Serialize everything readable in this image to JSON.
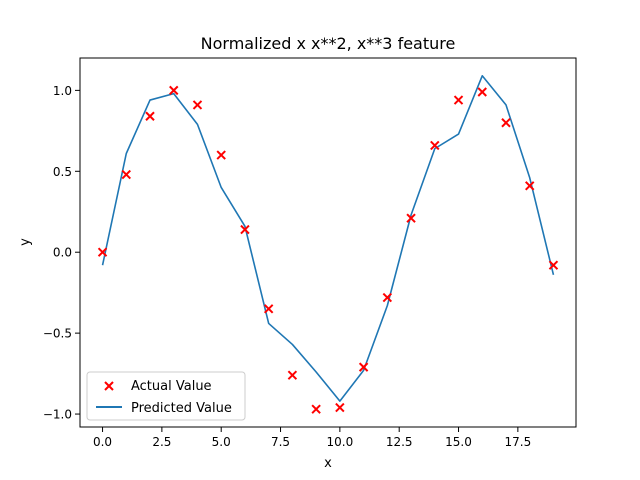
{
  "chart_data": {
    "type": "line",
    "title": "Normalized x x**2, x**3 feature",
    "xlabel": "x",
    "ylabel": "y",
    "xlim": [
      -0.95,
      19.95
    ],
    "ylim": [
      -1.08,
      1.2
    ],
    "x_ticks": [
      0.0,
      2.5,
      5.0,
      7.5,
      10.0,
      12.5,
      15.0,
      17.5
    ],
    "x_tick_labels": [
      "0.0",
      "2.5",
      "5.0",
      "7.5",
      "10.0",
      "12.5",
      "15.0",
      "17.5"
    ],
    "y_ticks": [
      -1.0,
      -0.5,
      0.0,
      0.5,
      1.0
    ],
    "y_tick_labels": [
      "−1.0",
      "−0.5",
      "0.0",
      "0.5",
      "1.0"
    ],
    "grid": false,
    "legend_position": "lower-left",
    "series": [
      {
        "name": "Actual Value",
        "type": "scatter",
        "marker": "x",
        "color": "#ff0000",
        "x": [
          0,
          1,
          2,
          3,
          4,
          5,
          6,
          7,
          8,
          9,
          10,
          11,
          12,
          13,
          14,
          15,
          16,
          17,
          18,
          19
        ],
        "y": [
          0.0,
          0.48,
          0.84,
          1.0,
          0.91,
          0.6,
          0.14,
          -0.35,
          -0.76,
          -0.97,
          -0.96,
          -0.71,
          -0.28,
          0.21,
          0.66,
          0.94,
          0.99,
          0.8,
          0.41,
          -0.08
        ]
      },
      {
        "name": "Predicted Value",
        "type": "line",
        "color": "#1f77b4",
        "x": [
          0,
          1,
          2,
          3,
          4,
          5,
          6,
          7,
          8,
          9,
          10,
          11,
          12,
          13,
          14,
          15,
          16,
          17,
          18,
          19
        ],
        "y": [
          -0.08,
          0.61,
          0.94,
          0.98,
          0.79,
          0.4,
          0.16,
          -0.44,
          -0.57,
          -0.74,
          -0.92,
          -0.73,
          -0.33,
          0.23,
          0.64,
          0.73,
          1.09,
          0.91,
          0.46,
          -0.14
        ]
      }
    ]
  }
}
